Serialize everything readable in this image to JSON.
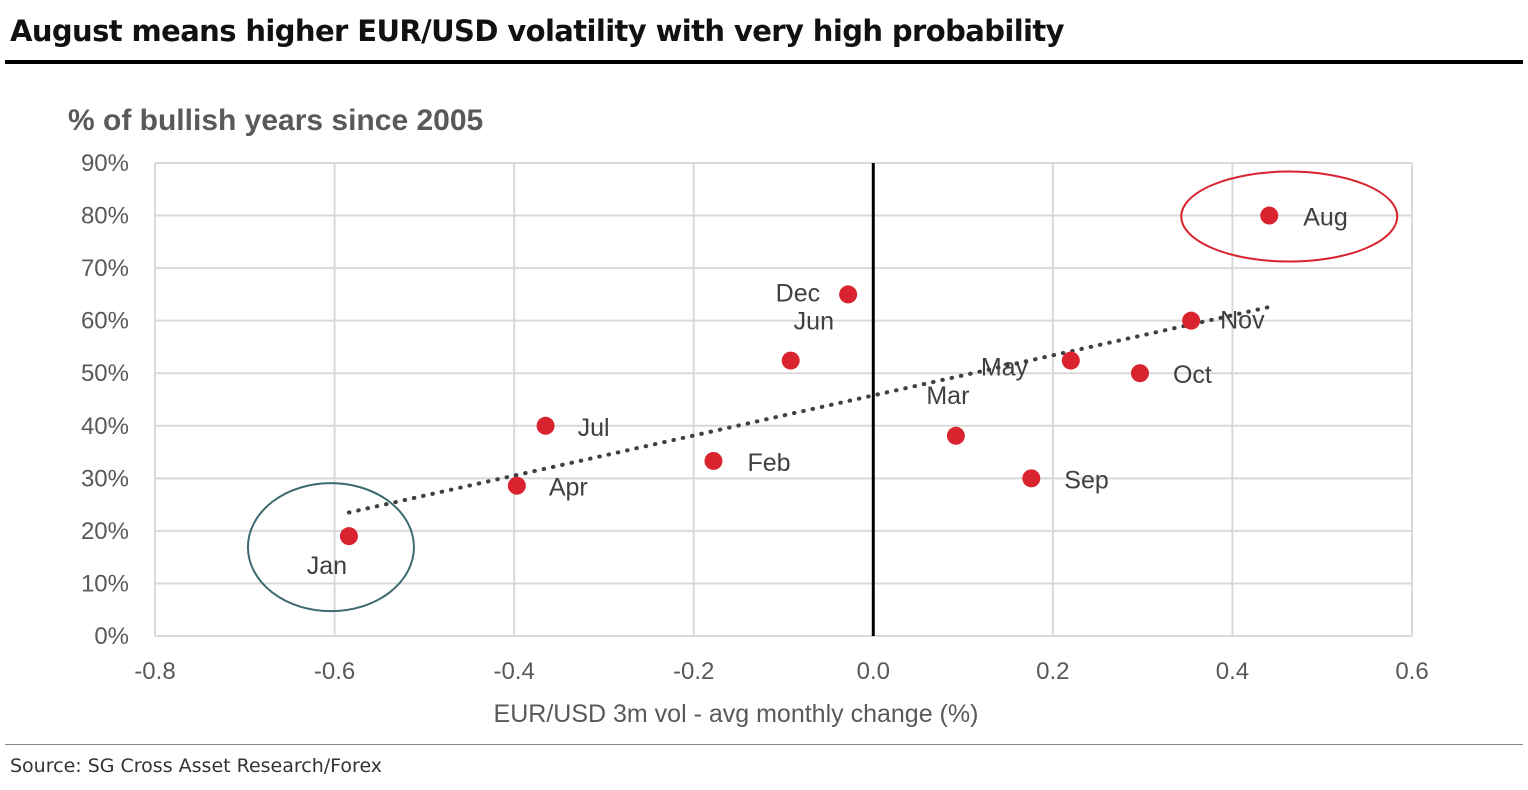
{
  "header": {
    "title": "August means higher EUR/USD volatility with very high probability"
  },
  "footer": {
    "source": "Source: SG Cross Asset Research/Forex"
  },
  "chart_data": {
    "type": "scatter",
    "title": "% of bullish years since 2005",
    "xlabel": "EUR/USD 3m vol - avg monthly change (%)",
    "ylabel": "",
    "xlim": [
      -0.8,
      0.6
    ],
    "ylim": [
      0,
      90
    ],
    "x_ticks": [
      -0.8,
      -0.6,
      -0.4,
      -0.2,
      0.0,
      0.2,
      0.4,
      0.6
    ],
    "x_tick_labels": [
      "-0.8",
      "-0.6",
      "-0.4",
      "-0.2",
      "0.0",
      "0.2",
      "0.4",
      "0.6"
    ],
    "y_ticks": [
      0,
      10,
      20,
      30,
      40,
      50,
      60,
      70,
      80,
      90
    ],
    "y_tick_labels": [
      "0%",
      "10%",
      "20%",
      "30%",
      "40%",
      "50%",
      "60%",
      "70%",
      "80%",
      "90%"
    ],
    "grid": true,
    "zero_line": true,
    "marker_color": "#d9232e",
    "points": [
      {
        "label": "Jan",
        "x": -0.584,
        "y": 19.0
      },
      {
        "label": "Feb",
        "x": -0.178,
        "y": 33.3
      },
      {
        "label": "Mar",
        "x": 0.092,
        "y": 38.1
      },
      {
        "label": "Apr",
        "x": -0.397,
        "y": 28.6
      },
      {
        "label": "May",
        "x": 0.22,
        "y": 52.4
      },
      {
        "label": "Jun",
        "x": -0.092,
        "y": 52.4
      },
      {
        "label": "Jul",
        "x": -0.365,
        "y": 40.0
      },
      {
        "label": "Aug",
        "x": 0.441,
        "y": 80.0
      },
      {
        "label": "Sep",
        "x": 0.176,
        "y": 30.0
      },
      {
        "label": "Oct",
        "x": 0.297,
        "y": 50.0
      },
      {
        "label": "Nov",
        "x": 0.354,
        "y": 60.0
      },
      {
        "label": "Dec",
        "x": -0.028,
        "y": 65.0
      }
    ],
    "trendline": {
      "style": "dotted",
      "color": "#404040",
      "from": {
        "x": -0.584,
        "y": 23.5
      },
      "to": {
        "x": 0.441,
        "y": 62.6
      }
    },
    "highlights": [
      {
        "point": "Jan",
        "color": "#3d6a70"
      },
      {
        "point": "Aug",
        "color": "#d9232e"
      }
    ]
  }
}
